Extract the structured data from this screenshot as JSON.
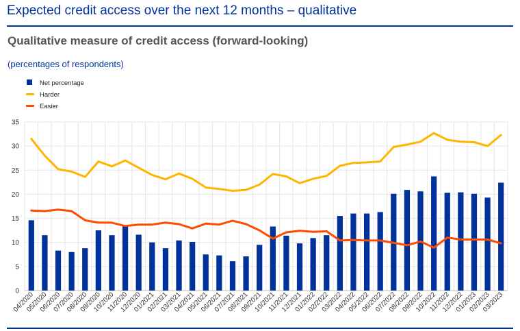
{
  "header": {
    "title": "Expected credit access over the next 12 months – qualitative",
    "subtitle": "Qualitative measure of credit access (forward-looking)",
    "units": "(percentages of respondents)"
  },
  "colors": {
    "net": "#003299",
    "harder": "#FFB400",
    "easier": "#FF4B00"
  },
  "chart_data": {
    "type": "bar",
    "categories": [
      "04/2020",
      "05/2020",
      "06/2020",
      "07/2020",
      "08/2020",
      "09/2020",
      "10/2020",
      "11/2020",
      "12/2020",
      "01/2021",
      "02/2021",
      "03/2021",
      "04/2021",
      "05/2021",
      "06/2021",
      "07/2021",
      "08/2021",
      "09/2021",
      "10/2021",
      "11/2021",
      "12/2021",
      "01/2022",
      "02/2022",
      "03/2022",
      "04/2022",
      "05/2022",
      "06/2022",
      "07/2022",
      "08/2022",
      "09/2022",
      "10/2022",
      "11/2022",
      "12/2022",
      "01/2023",
      "02/2023",
      "03/2023"
    ],
    "ylim": [
      0,
      35
    ],
    "yticks": [
      0,
      5,
      10,
      15,
      20,
      25,
      30,
      35
    ],
    "grid": true,
    "legend_position": "top-left",
    "series": [
      {
        "name": "Net percentage",
        "type": "bar",
        "values": [
          14.6,
          11.5,
          8.3,
          8.0,
          8.8,
          12.5,
          11.5,
          13.6,
          11.6,
          10.0,
          8.8,
          10.4,
          10.1,
          7.5,
          7.3,
          6.1,
          7.1,
          9.5,
          13.3,
          11.4,
          9.8,
          10.9,
          11.5,
          15.5,
          16.0,
          16.0,
          16.3,
          20.1,
          20.9,
          20.6,
          23.7,
          20.3,
          20.4,
          20.1,
          19.3,
          22.4
        ]
      },
      {
        "name": "Harder",
        "type": "line",
        "values": [
          31.5,
          28.0,
          25.2,
          24.7,
          23.6,
          26.8,
          25.8,
          27.0,
          25.5,
          24.0,
          23.1,
          24.3,
          23.2,
          21.4,
          21.1,
          20.7,
          20.9,
          22.0,
          24.2,
          23.7,
          22.3,
          23.2,
          23.8,
          25.9,
          26.5,
          26.6,
          26.8,
          29.8,
          30.3,
          30.9,
          32.7,
          31.3,
          30.9,
          30.8,
          30.0,
          32.3
        ]
      },
      {
        "name": "Easier",
        "type": "line",
        "values": [
          16.6,
          16.5,
          16.8,
          16.5,
          14.6,
          14.1,
          14.1,
          13.4,
          13.7,
          13.7,
          14.1,
          13.8,
          12.9,
          13.9,
          13.7,
          14.5,
          13.8,
          12.5,
          10.8,
          12.1,
          12.4,
          12.2,
          12.3,
          10.4,
          10.5,
          10.4,
          10.4,
          9.9,
          9.4,
          10.2,
          8.9,
          11.0,
          10.6,
          10.6,
          10.6,
          9.8
        ]
      }
    ]
  }
}
